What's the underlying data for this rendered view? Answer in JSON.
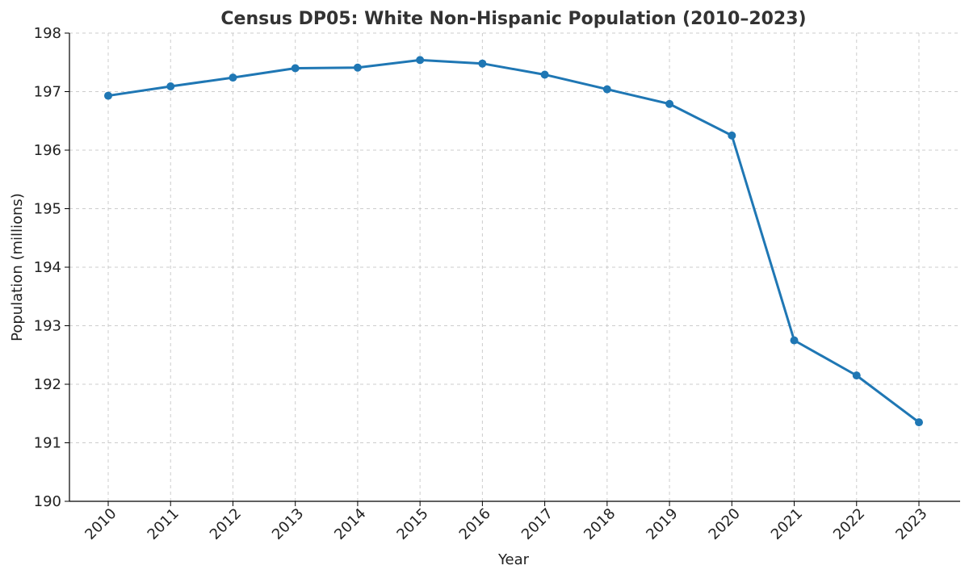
{
  "chart_data": {
    "type": "line",
    "title": "Census DP05: White Non-Hispanic Population (2010–2023)",
    "xlabel": "Year",
    "ylabel": "Population (millions)",
    "categories": [
      "2010",
      "2011",
      "2012",
      "2013",
      "2014",
      "2015",
      "2016",
      "2017",
      "2018",
      "2019",
      "2020",
      "2021",
      "2022",
      "2023"
    ],
    "series": [
      {
        "values": [
          196.93,
          197.09,
          197.24,
          197.4,
          197.41,
          197.54,
          197.48,
          197.29,
          197.04,
          196.79,
          196.25,
          192.75,
          192.15,
          191.35
        ],
        "color": "#1f77b4"
      }
    ],
    "ylim": [
      190,
      198
    ],
    "yticks": [
      190,
      191,
      192,
      193,
      194,
      195,
      196,
      197,
      198
    ],
    "grid": true,
    "line_style": "solid-with-circle-markers"
  }
}
